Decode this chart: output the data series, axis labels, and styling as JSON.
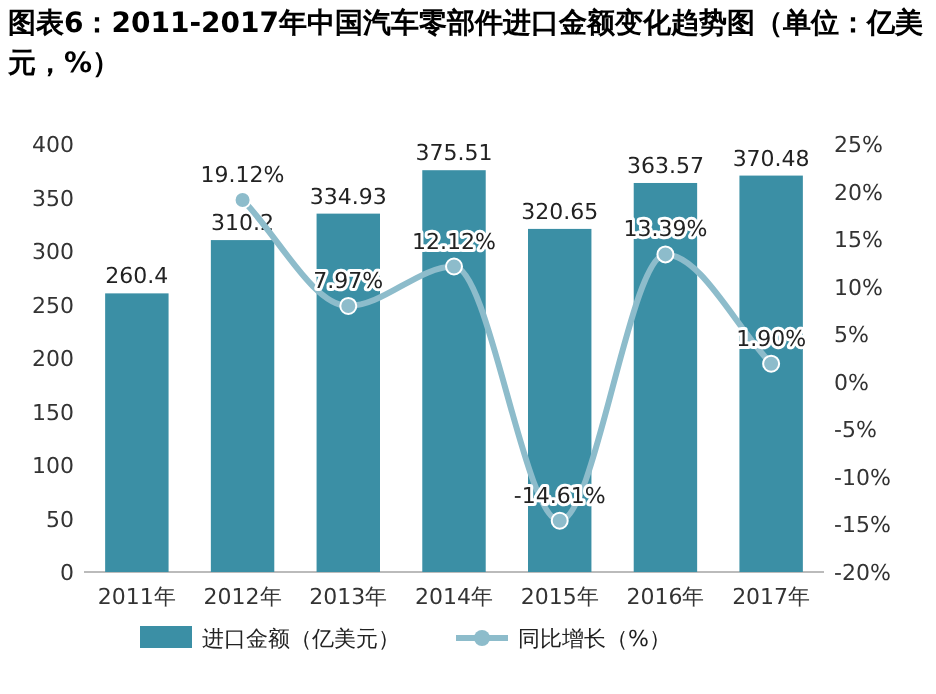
{
  "chart_data": {
    "type": "bar",
    "title": "图表6：2011-2017年中国汽车零部件进口金额变化趋势图（单位：亿美元，%）",
    "categories": [
      "2011年",
      "2012年",
      "2013年",
      "2014年",
      "2015年",
      "2016年",
      "2017年"
    ],
    "series": [
      {
        "name": "进口金额（亿美元）",
        "color": "#3b8fa5",
        "values": [
          260.4,
          310.2,
          334.93,
          375.51,
          320.65,
          363.57,
          370.48
        ],
        "value_labels": [
          "260.4",
          "310.2",
          "334.93",
          "375.51",
          "320.65",
          "363.57",
          "370.48"
        ]
      },
      {
        "name": "同比增长（%）",
        "type": "line",
        "axis": "y2",
        "color": "#8dbccb",
        "marker": "circle",
        "values": [
          null,
          19.12,
          7.97,
          12.12,
          -14.61,
          13.39,
          1.9
        ],
        "value_labels": [
          null,
          "19.12%",
          "7.97%",
          "12.12%",
          "-14.61%",
          "13.39%",
          "1.90%"
        ]
      }
    ],
    "ylim": [
      0,
      400
    ],
    "yticks": [
      0,
      50,
      100,
      150,
      200,
      250,
      300,
      350,
      400
    ],
    "y2lim": [
      -20,
      25
    ],
    "y2ticks": [
      {
        "value": -20,
        "label": "-20%"
      },
      {
        "value": -15,
        "label": "-15%"
      },
      {
        "value": -10,
        "label": "-10%"
      },
      {
        "value": -5,
        "label": "-5%"
      },
      {
        "value": 0,
        "label": "0%"
      },
      {
        "value": 5,
        "label": "5%"
      },
      {
        "value": 10,
        "label": "10%"
      },
      {
        "value": 15,
        "label": "15%"
      },
      {
        "value": 20,
        "label": "20%"
      },
      {
        "value": 25,
        "label": "25%"
      }
    ],
    "legend": "bottom"
  }
}
